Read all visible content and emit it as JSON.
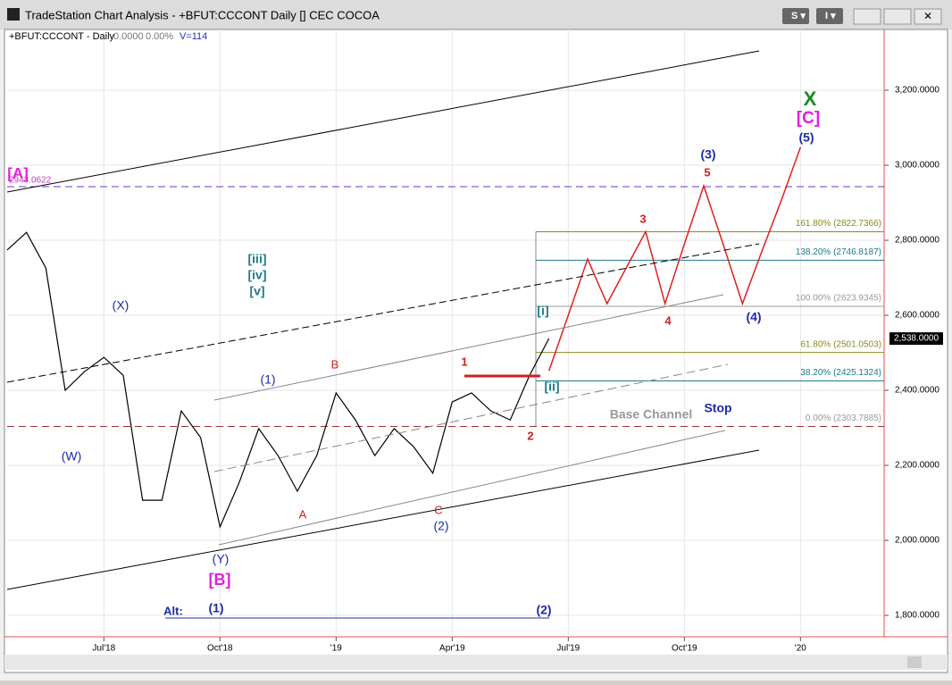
{
  "window": {
    "title": "TradeStation Chart Analysis - +BFUT:CCCONT Daily [] CEC COCOA"
  },
  "info": {
    "symbol": "+BFUT:CCCONT - Daily",
    "change": "0.0000",
    "percent": "0.00%",
    "volume": "V=114"
  },
  "chart_data": {
    "type": "line",
    "categories": [
      null,
      null,
      null,
      null,
      null,
      "Jul'18",
      null,
      null,
      null,
      null,
      null,
      "Oct'18",
      null,
      null,
      null,
      null,
      null,
      "'19",
      null,
      null,
      null,
      null,
      null,
      "Apr'19",
      null,
      null,
      null,
      null,
      null,
      "Jul'19",
      null,
      null,
      null,
      null,
      null,
      "Oct'19",
      null,
      null,
      null,
      null,
      null,
      "'20",
      null,
      null,
      null,
      null
    ],
    "series": [
      {
        "name": "CCCONT",
        "color": "#000000",
        "values": [
          2774,
          2821,
          2726,
          2400,
          2450,
          2488,
          2440,
          2107,
          2107,
          2345,
          2274,
          2036,
          2155,
          2298,
          2226,
          2131,
          2226,
          2393,
          2321,
          2226,
          2298,
          2250,
          2179,
          2369,
          2393,
          2345,
          2321,
          2440,
          2538,
          null,
          null,
          null,
          null,
          null,
          null,
          null,
          null,
          null,
          null,
          null,
          null,
          null,
          null,
          null,
          null,
          null
        ]
      },
      {
        "name": "Projection",
        "color": "#e0201e",
        "values": [
          null,
          null,
          null,
          null,
          null,
          null,
          null,
          null,
          null,
          null,
          null,
          null,
          null,
          null,
          null,
          null,
          null,
          null,
          null,
          null,
          null,
          null,
          null,
          null,
          null,
          null,
          null,
          null,
          2452,
          2600,
          2750,
          2631,
          2727,
          2823,
          2631,
          2790,
          2945,
          2790,
          2631,
          2770,
          2905,
          3048,
          null,
          null,
          null,
          null
        ]
      }
    ],
    "last_price": {
      "value": 2538,
      "label": "2,538.0000"
    },
    "ylim": [
      1743,
      3362
    ],
    "yticks": [
      {
        "value": 1800,
        "label": "1,800.0000"
      },
      {
        "value": 2000,
        "label": "2,000.0000"
      },
      {
        "value": 2200,
        "label": "2,200.0000"
      },
      {
        "value": 2400,
        "label": "2,400.0000"
      },
      {
        "value": 2600,
        "label": "2,600.0000"
      },
      {
        "value": 2800,
        "label": "2,800.0000"
      },
      {
        "value": 3000,
        "label": "3,000.0000"
      },
      {
        "value": 3200,
        "label": "3,200.0000"
      }
    ],
    "high_line": 2943.0622,
    "fib_levels": [
      {
        "value": 2822.7366,
        "label": "161.80% (2822.7366)",
        "color": "#8a8a20"
      },
      {
        "value": 2746.8187,
        "label": "138.20% (2746.8187)",
        "color": "#1e7b8a"
      },
      {
        "value": 2623.9345,
        "label": "100.00% (2623.9345)",
        "color": "#999999"
      },
      {
        "value": 2501.0503,
        "label": "61.80% (2501.0503)",
        "color": "#8a8a20"
      },
      {
        "value": 2425.1324,
        "label": "38.20% (2425.1324)",
        "color": "#1e7b8a"
      },
      {
        "value": 2303.7885,
        "label": "0.00% (2303.7885)",
        "color": "#999999"
      }
    ],
    "annotations": [
      "[A]",
      "(X)",
      "(W)",
      "(Y)",
      "[B]",
      "(1)",
      "B",
      "A",
      "1",
      "C",
      "(2)",
      "2",
      "[i]",
      "[ii]",
      "[iii]",
      "[iv]",
      "[v]",
      "3",
      "5",
      "4",
      "(3)",
      "(4)",
      "(5)",
      "[C]",
      "X",
      "Base Channel",
      "Stop",
      "Alt:",
      "(1)",
      "(2)"
    ]
  }
}
